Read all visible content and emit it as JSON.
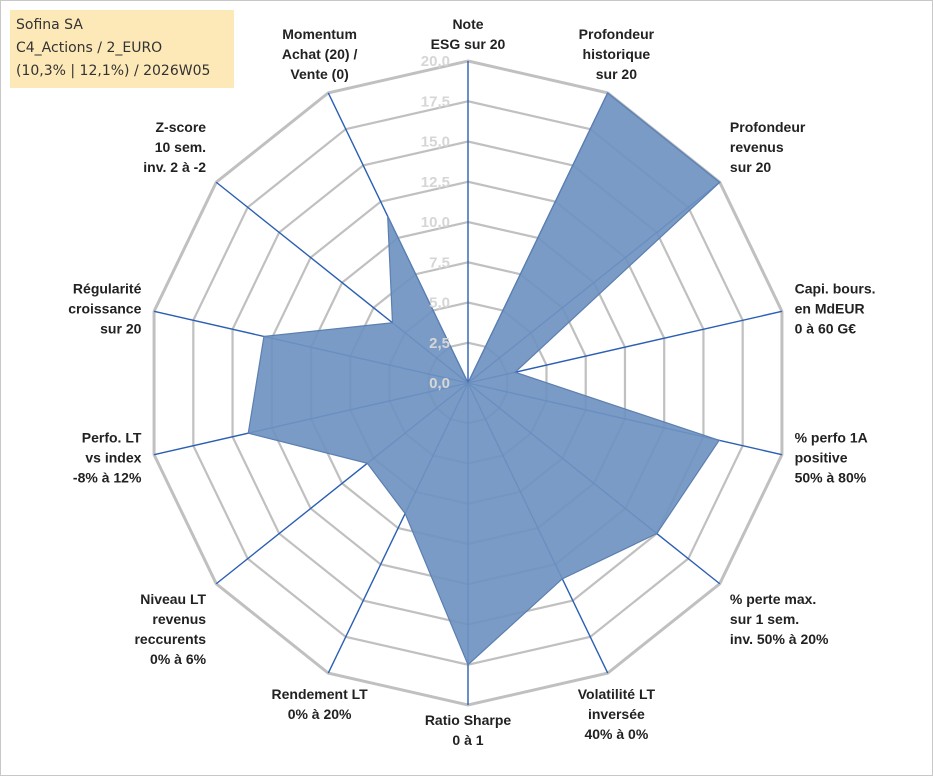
{
  "info": {
    "line1": "Sofina SA",
    "line2": "C4_Actions / 2_EURO",
    "line3": "(10,3% | 12,1%) / 2026W05"
  },
  "chart_data": {
    "type": "radar",
    "title": "Sofina SA",
    "range": [
      0,
      20
    ],
    "grid_levels": [
      0,
      2.5,
      5,
      7.5,
      10,
      12.5,
      15,
      17.5,
      20
    ],
    "tick_labels": [
      "0,0",
      "2,5",
      "5,0",
      "7,5",
      "10,0",
      "12,5",
      "15,0",
      "17,5",
      "20,0"
    ],
    "colors": {
      "fill": "#6f93c1",
      "stroke": "#5b7fb0",
      "grid": "#c0c0c0",
      "spoke": "#2a5fb4"
    },
    "axes": [
      {
        "lines": [
          "Note",
          "ESG sur 20"
        ],
        "value": 0
      },
      {
        "lines": [
          "Profondeur",
          "historique",
          "sur 20"
        ],
        "value": 20
      },
      {
        "lines": [
          "Profondeur",
          "revenus",
          "sur 20"
        ],
        "value": 20
      },
      {
        "lines": [
          "Capi. bours.",
          "en MdEUR",
          "0 à 60 G€"
        ],
        "value": 3
      },
      {
        "lines": [
          "% perfo 1A",
          "positive",
          "50% à 80%"
        ],
        "value": 16
      },
      {
        "lines": [
          "% perte max.",
          "sur 1 sem.",
          "inv. 50% à 20%"
        ],
        "value": 15
      },
      {
        "lines": [
          "Volatilité LT",
          "inversée",
          "40% à 0%"
        ],
        "value": 13.5
      },
      {
        "lines": [
          "Ratio Sharpe",
          "0 à 1"
        ],
        "value": 17.5
      },
      {
        "lines": [
          "Rendement LT",
          "0% à 20%"
        ],
        "value": 9
      },
      {
        "lines": [
          "Niveau LT",
          "revenus",
          "reccurents",
          "0% à 6%"
        ],
        "value": 8
      },
      {
        "lines": [
          "Perfo. LT",
          "vs index",
          "-8% à 12%"
        ],
        "value": 14
      },
      {
        "lines": [
          "Régularité",
          "croissance",
          "sur 20"
        ],
        "value": 13
      },
      {
        "lines": [
          "Z-score",
          "10 sem.",
          "inv. 2 à -2"
        ],
        "value": 6
      },
      {
        "lines": [
          "Momentum",
          "Achat (20) /",
          "Vente (0)"
        ],
        "value": 11.5
      }
    ]
  }
}
